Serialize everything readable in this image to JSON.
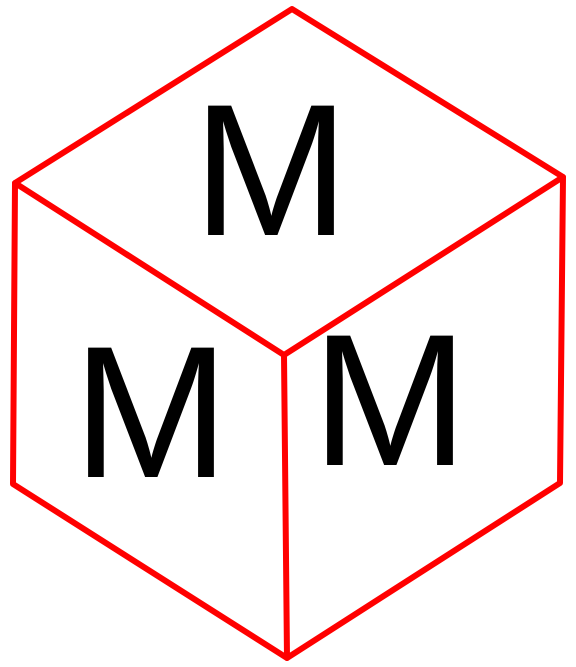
{
  "cube": {
    "edge_color": "#ff0000",
    "letter_color": "#000000",
    "faces": {
      "top": {
        "letter": "M"
      },
      "left": {
        "letter": "M"
      },
      "right": {
        "letter": "M"
      }
    }
  }
}
